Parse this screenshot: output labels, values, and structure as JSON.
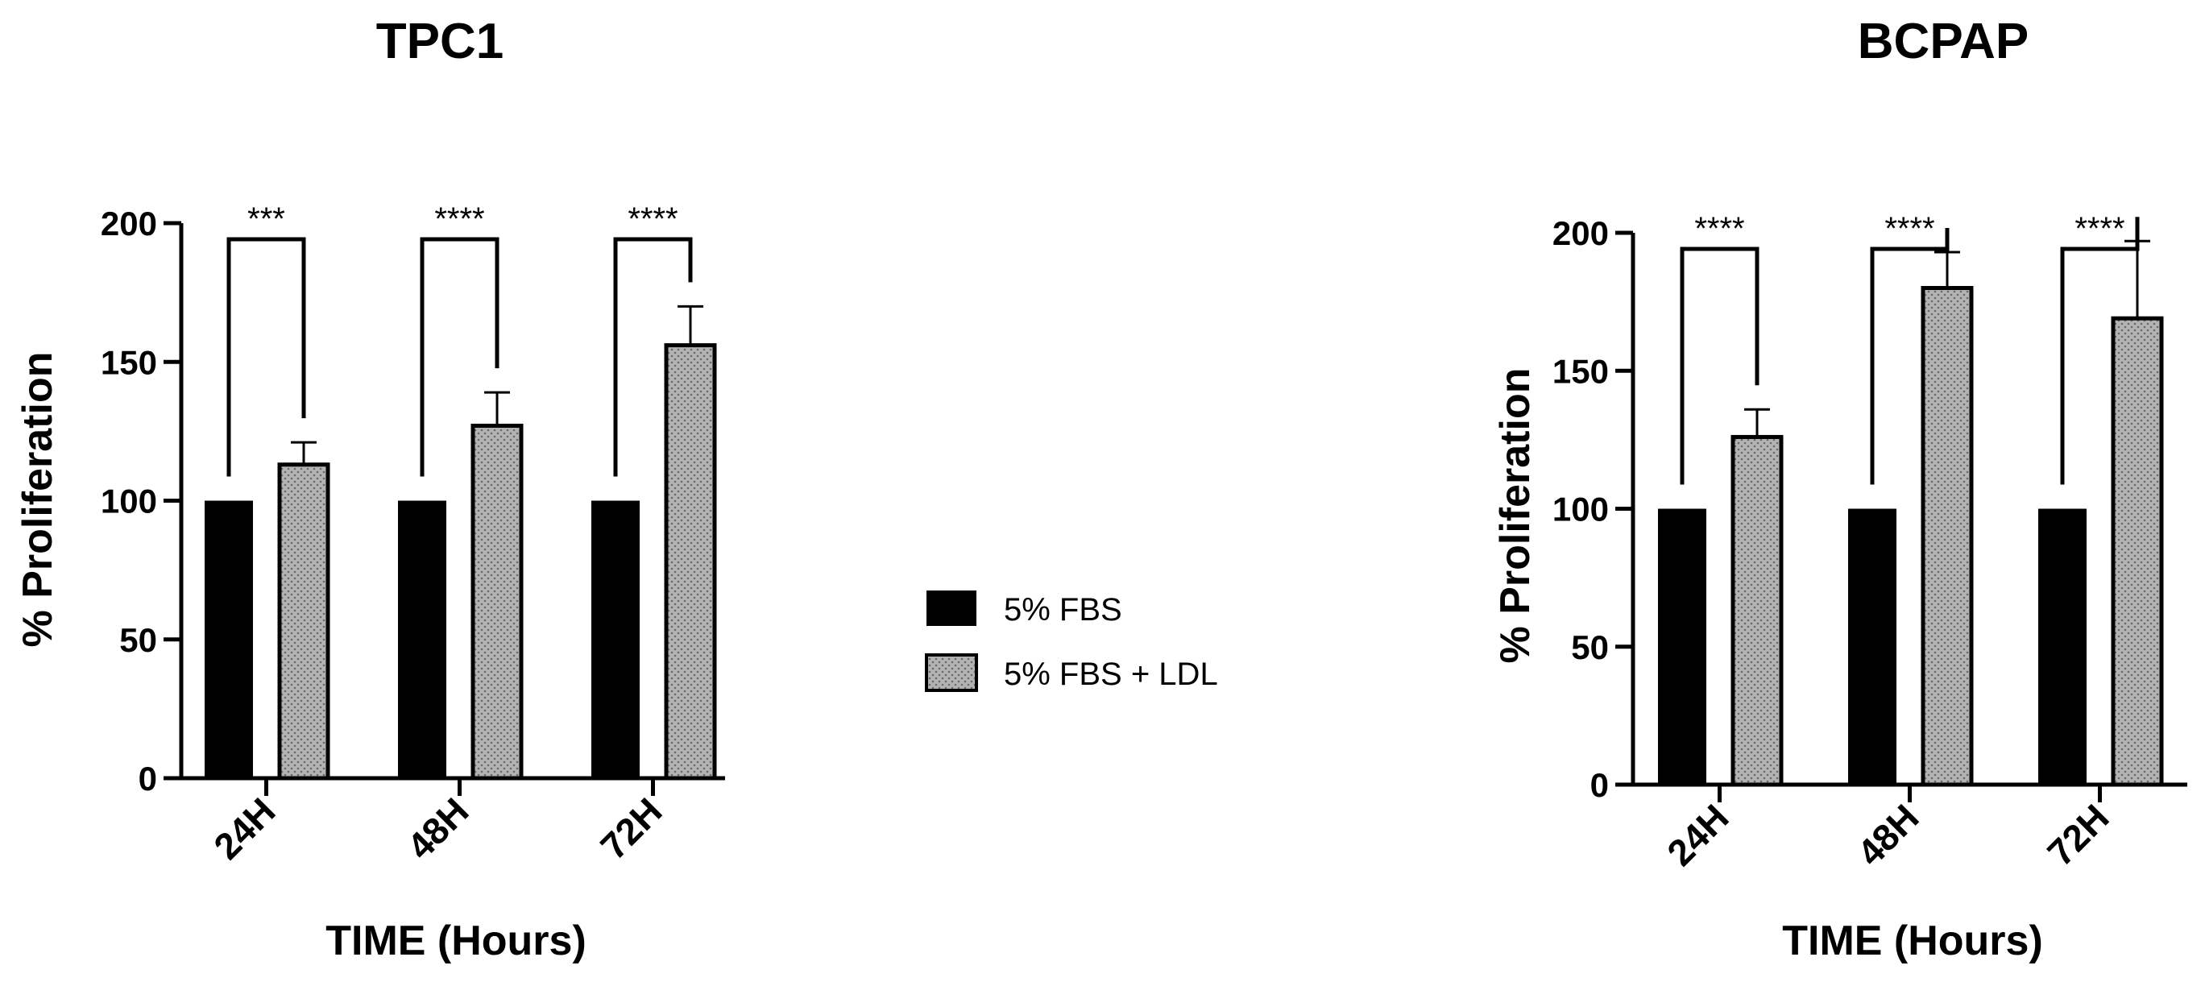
{
  "colors": {
    "fbs": "#000000",
    "ldl_fill": "#b3b3b3",
    "ldl_dot": "#6a6a6a",
    "axis": "#000000"
  },
  "legend": [
    "5% FBS",
    "5% FBS + LDL"
  ],
  "chart_data": [
    {
      "type": "bar",
      "title": "TPC1",
      "xlabel": "TIME (Hours)",
      "ylabel": "% Proliferation",
      "ylim": [
        0,
        200
      ],
      "yticks": [
        0,
        50,
        100,
        150,
        200
      ],
      "categories": [
        "24H",
        "48H",
        "72H"
      ],
      "series": [
        {
          "name": "5% FBS",
          "values": [
            100,
            100,
            100
          ]
        },
        {
          "name": "5% FBS + LDL",
          "values": [
            113,
            127,
            156
          ],
          "error": [
            8,
            12,
            14
          ]
        }
      ],
      "significance": [
        "***",
        "****",
        "****"
      ]
    },
    {
      "type": "bar",
      "title": "BCPAP",
      "xlabel": "TIME (Hours)",
      "ylabel": "% Proliferation",
      "ylim": [
        0,
        200
      ],
      "yticks": [
        0,
        50,
        100,
        150,
        200
      ],
      "categories": [
        "24H",
        "48H",
        "72H"
      ],
      "series": [
        {
          "name": "5% FBS",
          "values": [
            100,
            100,
            100
          ]
        },
        {
          "name": "5% FBS + LDL",
          "values": [
            126,
            180,
            169
          ],
          "error": [
            10,
            13,
            28
          ]
        }
      ],
      "significance": [
        "****",
        "****",
        "****"
      ]
    }
  ]
}
